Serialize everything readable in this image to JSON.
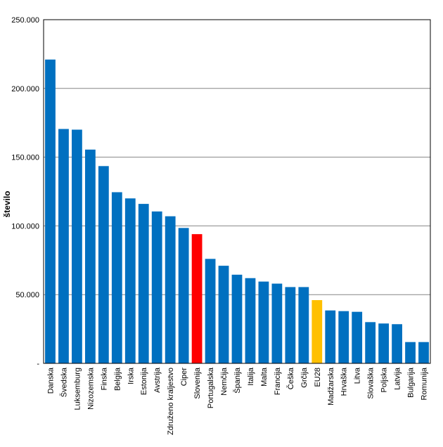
{
  "chart_data": {
    "type": "bar",
    "title": "",
    "xlabel": "",
    "ylabel": "število",
    "ylim": [
      0,
      250000
    ],
    "yticks": [
      0,
      50000,
      100000,
      150000,
      200000,
      250000
    ],
    "ytick_labels": [
      "-",
      "50.000",
      "100.000",
      "150.000",
      "200.000",
      "250.000"
    ],
    "grid": true,
    "legend": "none",
    "categories": [
      "Danska",
      "Švedska",
      "Luksemburg",
      "Nizozemska",
      "Finska",
      "Belgija",
      "Irska",
      "Estonija",
      "Avstrija",
      "Združeno kraljestvo",
      "Ciper",
      "Slovenija",
      "Portugalska",
      "Nemčija",
      "Španija",
      "Italija",
      "Malta",
      "Francija",
      "Češka",
      "Grčija",
      "EU28",
      "Madžarska",
      "Hrvaška",
      "Litva",
      "Slovaška",
      "Poljska",
      "Latvija",
      "Bulgarija",
      "Romunija"
    ],
    "values": [
      221000,
      170500,
      170000,
      155500,
      143500,
      124500,
      120000,
      116000,
      110500,
      107000,
      98500,
      94000,
      76000,
      71000,
      64500,
      62000,
      59500,
      58000,
      55500,
      55500,
      46000,
      38500,
      38000,
      37500,
      30000,
      29000,
      28500,
      15500,
      15500
    ],
    "colors": {
      "default": "#0070C0",
      "Slovenija": "#FF0000",
      "EU28": "#FFC000"
    }
  }
}
